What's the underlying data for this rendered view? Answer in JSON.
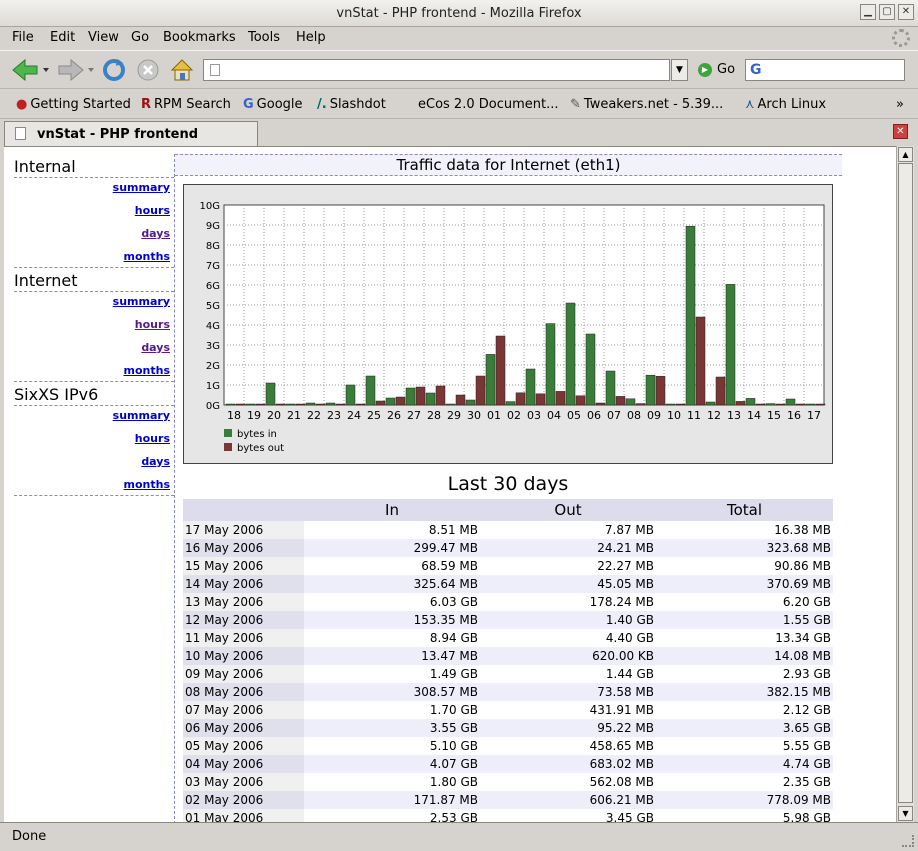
{
  "window": {
    "title": "vnStat - PHP frontend - Mozilla Firefox"
  },
  "menu": [
    "File",
    "Edit",
    "View",
    "Go",
    "Bookmarks",
    "Tools",
    "Help"
  ],
  "nav": {
    "go_label": "Go"
  },
  "bookmarks": [
    "Getting Started",
    "RPM Search",
    "Google",
    "Slashdot",
    "eCos 2.0 Document...",
    "Tweakers.net - 5.39...",
    "Arch Linux"
  ],
  "tab": {
    "label": "vnStat - PHP frontend"
  },
  "status": "Done",
  "sidebar": {
    "groups": [
      {
        "title": "Internal",
        "links": [
          "summary",
          "hours",
          "days",
          "months"
        ]
      },
      {
        "title": "Internet",
        "links": [
          "summary",
          "hours",
          "days",
          "months"
        ]
      },
      {
        "title": "SixXS IPv6",
        "links": [
          "summary",
          "hours",
          "days",
          "months"
        ]
      }
    ]
  },
  "content": {
    "heading": "Traffic data for Internet (eth1)",
    "table_title": "Last 30 days",
    "columns": [
      "",
      "In",
      "Out",
      "Total"
    ],
    "rows": [
      [
        "17 May 2006",
        "8.51 MB",
        "7.87 MB",
        "16.38 MB"
      ],
      [
        "16 May 2006",
        "299.47 MB",
        "24.21 MB",
        "323.68 MB"
      ],
      [
        "15 May 2006",
        "68.59 MB",
        "22.27 MB",
        "90.86 MB"
      ],
      [
        "14 May 2006",
        "325.64 MB",
        "45.05 MB",
        "370.69 MB"
      ],
      [
        "13 May 2006",
        "6.03 GB",
        "178.24 MB",
        "6.20 GB"
      ],
      [
        "12 May 2006",
        "153.35 MB",
        "1.40 GB",
        "1.55 GB"
      ],
      [
        "11 May 2006",
        "8.94 GB",
        "4.40 GB",
        "13.34 GB"
      ],
      [
        "10 May 2006",
        "13.47 MB",
        "620.00 KB",
        "14.08 MB"
      ],
      [
        "09 May 2006",
        "1.49 GB",
        "1.44 GB",
        "2.93 GB"
      ],
      [
        "08 May 2006",
        "308.57 MB",
        "73.58 MB",
        "382.15 MB"
      ],
      [
        "07 May 2006",
        "1.70 GB",
        "431.91 MB",
        "2.12 GB"
      ],
      [
        "06 May 2006",
        "3.55 GB",
        "95.22 MB",
        "3.65 GB"
      ],
      [
        "05 May 2006",
        "5.10 GB",
        "458.65 MB",
        "5.55 GB"
      ],
      [
        "04 May 2006",
        "4.07 GB",
        "683.02 MB",
        "4.74 GB"
      ],
      [
        "03 May 2006",
        "1.80 GB",
        "562.08 MB",
        "2.35 GB"
      ],
      [
        "02 May 2006",
        "171.87 MB",
        "606.21 MB",
        "778.09 MB"
      ],
      [
        "01 May 2006",
        "2.53 GB",
        "3.45 GB",
        "5.98 GB"
      ]
    ]
  },
  "chart_data": {
    "type": "bar",
    "categories": [
      "18",
      "19",
      "20",
      "21",
      "22",
      "23",
      "24",
      "25",
      "26",
      "27",
      "28",
      "29",
      "30",
      "01",
      "02",
      "03",
      "04",
      "05",
      "06",
      "07",
      "08",
      "09",
      "10",
      "11",
      "12",
      "13",
      "14",
      "15",
      "16",
      "17"
    ],
    "y_ticks": [
      "0G",
      "1G",
      "2G",
      "3G",
      "4G",
      "5G",
      "6G",
      "7G",
      "8G",
      "9G",
      "10G"
    ],
    "ylim": [
      0,
      10
    ],
    "grid": true,
    "legend_position": "bottom-left",
    "series": [
      {
        "name": "bytes in",
        "color": "#3a7d3a",
        "values": [
          0.05,
          0.05,
          1.1,
          0.05,
          0.1,
          0.1,
          1.0,
          1.45,
          0.35,
          0.85,
          0.6,
          0.05,
          0.25,
          2.53,
          0.17,
          1.8,
          4.07,
          5.1,
          3.55,
          1.7,
          0.31,
          1.49,
          0.01,
          8.94,
          0.15,
          6.03,
          0.33,
          0.07,
          0.3,
          0.01
        ]
      },
      {
        "name": "bytes out",
        "color": "#7a3535",
        "values": [
          0.05,
          0.05,
          0.05,
          0.05,
          0.05,
          0.05,
          0.05,
          0.2,
          0.4,
          0.9,
          0.95,
          0.5,
          1.45,
          3.45,
          0.61,
          0.56,
          0.68,
          0.46,
          0.1,
          0.43,
          0.07,
          1.44,
          0.01,
          4.4,
          1.4,
          0.18,
          0.05,
          0.02,
          0.02,
          0.01
        ]
      }
    ]
  }
}
